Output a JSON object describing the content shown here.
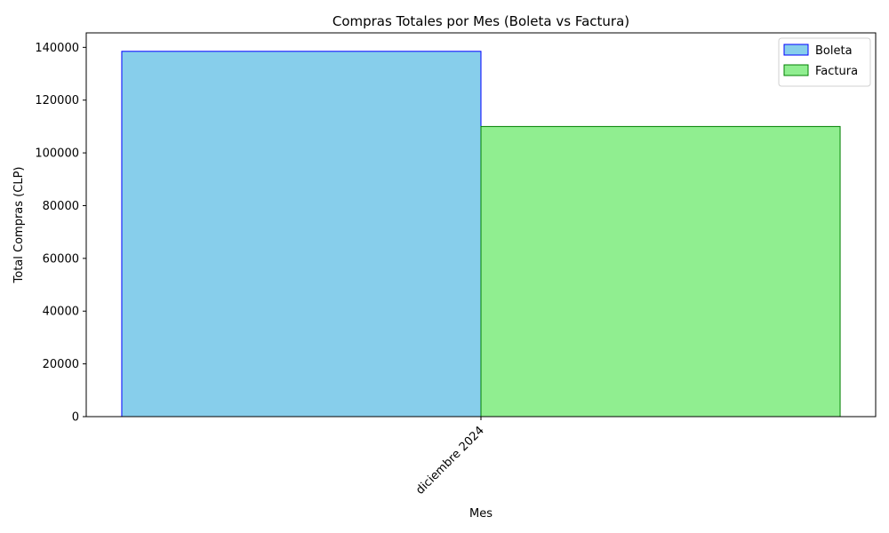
{
  "chart_data": {
    "type": "bar",
    "title": "Compras Totales por Mes (Boleta vs Factura)",
    "xlabel": "Mes",
    "ylabel": "Total Compras (CLP)",
    "categories": [
      "diciembre 2024"
    ],
    "series": [
      {
        "name": "Boleta",
        "values": [
          138500
        ],
        "fill": "#87ceeb",
        "stroke": "#0000ff"
      },
      {
        "name": "Factura",
        "values": [
          110000
        ],
        "fill": "#90ee90",
        "stroke": "#008000"
      }
    ],
    "ylim": [
      0,
      145500
    ],
    "yticks": [
      0,
      20000,
      40000,
      60000,
      80000,
      100000,
      120000,
      140000
    ],
    "grid": false,
    "legend_position": "top-right"
  }
}
